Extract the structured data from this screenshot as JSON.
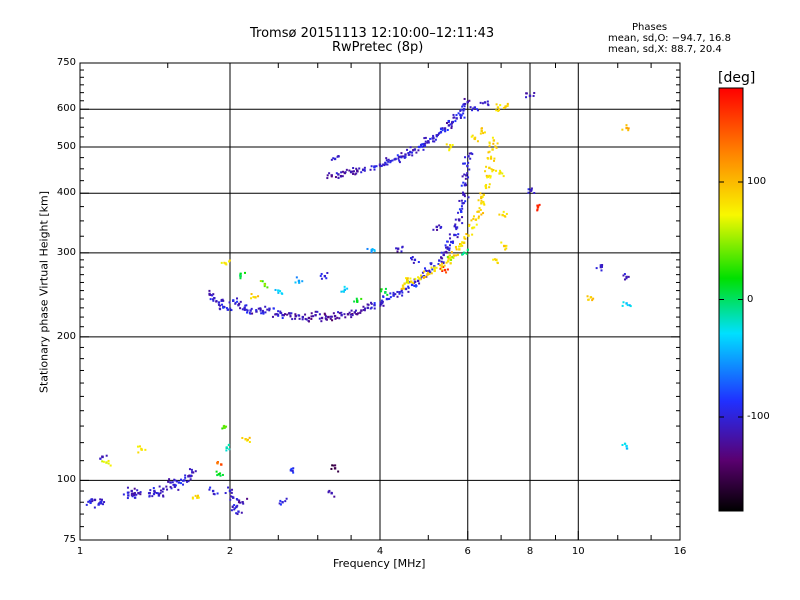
{
  "chart_data": {
    "type": "scatter",
    "title": "Tromsø 20151113 12:10:00–12:11:43",
    "subtitle": "RwPretec (8p)",
    "phases": {
      "heading": "Phases",
      "line_o": "mean, sd,O: −94.7, 16.8",
      "line_x": "mean, sd,X:  88.7, 20.4"
    },
    "xlabel": "Frequency [MHz]",
    "ylabel": "Stationary phase Virtual Height [km]",
    "xscale": "log",
    "yscale": "log",
    "xlim": [
      1,
      16
    ],
    "ylim": [
      75,
      750
    ],
    "xticks": [
      1,
      2,
      4,
      6,
      8,
      10,
      16
    ],
    "xtick_labels": [
      "1",
      "2",
      "4",
      "6",
      "8",
      "10",
      "16"
    ],
    "xgrid": [
      2,
      4,
      6,
      8,
      10
    ],
    "yticks": [
      75,
      100,
      200,
      300,
      400,
      500,
      600,
      750
    ],
    "ytick_labels": [
      "75",
      "100",
      "200",
      "300",
      "400",
      "500",
      "600",
      "750"
    ],
    "ygrid": [
      100,
      200,
      300,
      400,
      500,
      600
    ],
    "grid": true,
    "colorbar": {
      "label": "[deg]",
      "range": [
        -180,
        180
      ],
      "ticks": [
        100,
        0,
        -100
      ],
      "tick_labels": [
        "100",
        "0",
        "-100"
      ],
      "colormap": "rainbow (black-purple-blue-cyan-green-yellow-orange-red)"
    },
    "series": [
      {
        "color_by": "phase_deg",
        "points": [
          {
            "x": 1.05,
            "y": 90,
            "p": -100
          },
          {
            "x": 1.07,
            "y": 91,
            "p": -105
          },
          {
            "x": 1.09,
            "y": 89,
            "p": -95
          },
          {
            "x": 1.1,
            "y": 90,
            "p": -100
          },
          {
            "x": 1.11,
            "y": 112,
            "p": -110
          },
          {
            "x": 1.13,
            "y": 109,
            "p": 65
          },
          {
            "x": 1.25,
            "y": 93,
            "p": -100
          },
          {
            "x": 1.27,
            "y": 95,
            "p": -110
          },
          {
            "x": 1.29,
            "y": 92,
            "p": -100
          },
          {
            "x": 1.31,
            "y": 94,
            "p": -115
          },
          {
            "x": 1.33,
            "y": 116,
            "p": 80
          },
          {
            "x": 1.38,
            "y": 94,
            "p": -110
          },
          {
            "x": 1.41,
            "y": 95,
            "p": -105
          },
          {
            "x": 1.44,
            "y": 93,
            "p": -100
          },
          {
            "x": 1.47,
            "y": 96,
            "p": -110
          },
          {
            "x": 1.52,
            "y": 99,
            "p": -105
          },
          {
            "x": 1.55,
            "y": 97,
            "p": -110
          },
          {
            "x": 1.58,
            "y": 99,
            "p": -95
          },
          {
            "x": 1.62,
            "y": 100,
            "p": -100
          },
          {
            "x": 1.65,
            "y": 102,
            "p": -110
          },
          {
            "x": 1.68,
            "y": 104,
            "p": -105
          },
          {
            "x": 1.72,
            "y": 92,
            "p": 90
          },
          {
            "x": 1.85,
            "y": 95,
            "p": -100
          },
          {
            "x": 1.9,
            "y": 103,
            "p": 20
          },
          {
            "x": 1.92,
            "y": 108,
            "p": 140
          },
          {
            "x": 1.95,
            "y": 129,
            "p": 30
          },
          {
            "x": 1.97,
            "y": 117,
            "p": -10
          },
          {
            "x": 2.0,
            "y": 95,
            "p": -100
          },
          {
            "x": 2.03,
            "y": 92,
            "p": -110
          },
          {
            "x": 2.06,
            "y": 88,
            "p": -105
          },
          {
            "x": 2.08,
            "y": 86,
            "p": -100
          },
          {
            "x": 2.12,
            "y": 90,
            "p": -115
          },
          {
            "x": 2.15,
            "y": 122,
            "p": 90
          },
          {
            "x": 2.55,
            "y": 90,
            "p": -100
          },
          {
            "x": 2.65,
            "y": 105,
            "p": -90
          },
          {
            "x": 3.2,
            "y": 94,
            "p": -110
          },
          {
            "x": 3.25,
            "y": 106,
            "p": -150
          },
          {
            "x": 1.82,
            "y": 246,
            "p": -110
          },
          {
            "x": 1.86,
            "y": 241,
            "p": -105
          },
          {
            "x": 1.9,
            "y": 236,
            "p": -100
          },
          {
            "x": 1.94,
            "y": 231,
            "p": -110
          },
          {
            "x": 1.98,
            "y": 228,
            "p": -95
          },
          {
            "x": 1.96,
            "y": 285,
            "p": 80
          },
          {
            "x": 2.03,
            "y": 238,
            "p": -100
          },
          {
            "x": 2.08,
            "y": 233,
            "p": -110
          },
          {
            "x": 2.14,
            "y": 230,
            "p": -105
          },
          {
            "x": 2.2,
            "y": 227,
            "p": -100
          },
          {
            "x": 2.26,
            "y": 226,
            "p": -110
          },
          {
            "x": 2.33,
            "y": 225,
            "p": -95
          },
          {
            "x": 2.4,
            "y": 229,
            "p": -100
          },
          {
            "x": 2.48,
            "y": 223,
            "p": -110
          },
          {
            "x": 2.55,
            "y": 222,
            "p": -105
          },
          {
            "x": 2.63,
            "y": 224,
            "p": -115
          },
          {
            "x": 2.71,
            "y": 221,
            "p": -120
          },
          {
            "x": 2.8,
            "y": 220,
            "p": -110
          },
          {
            "x": 2.88,
            "y": 219,
            "p": -125
          },
          {
            "x": 2.97,
            "y": 222,
            "p": -115
          },
          {
            "x": 3.06,
            "y": 219,
            "p": -120
          },
          {
            "x": 3.15,
            "y": 220,
            "p": -130
          },
          {
            "x": 3.25,
            "y": 221,
            "p": -120
          },
          {
            "x": 3.35,
            "y": 222,
            "p": -110
          },
          {
            "x": 3.45,
            "y": 223,
            "p": -125
          },
          {
            "x": 3.56,
            "y": 225,
            "p": -115
          },
          {
            "x": 3.67,
            "y": 227,
            "p": -120
          },
          {
            "x": 3.78,
            "y": 230,
            "p": -110
          },
          {
            "x": 3.9,
            "y": 233,
            "p": -100
          },
          {
            "x": 4.01,
            "y": 236,
            "p": -110
          },
          {
            "x": 4.13,
            "y": 240,
            "p": -95
          },
          {
            "x": 4.26,
            "y": 244,
            "p": -100
          },
          {
            "x": 4.38,
            "y": 248,
            "p": -105
          },
          {
            "x": 4.51,
            "y": 252,
            "p": -100
          },
          {
            "x": 4.64,
            "y": 257,
            "p": -90
          },
          {
            "x": 4.77,
            "y": 262,
            "p": -110
          },
          {
            "x": 4.9,
            "y": 268,
            "p": -100
          },
          {
            "x": 5.02,
            "y": 274,
            "p": -105
          },
          {
            "x": 5.14,
            "y": 281,
            "p": -95
          },
          {
            "x": 5.26,
            "y": 289,
            "p": -100
          },
          {
            "x": 5.37,
            "y": 297,
            "p": -110
          },
          {
            "x": 5.47,
            "y": 306,
            "p": -100
          },
          {
            "x": 5.56,
            "y": 316,
            "p": -95
          },
          {
            "x": 5.64,
            "y": 327,
            "p": -105
          },
          {
            "x": 5.71,
            "y": 339,
            "p": -100
          },
          {
            "x": 5.77,
            "y": 352,
            "p": -110
          },
          {
            "x": 5.82,
            "y": 366,
            "p": -95
          },
          {
            "x": 5.86,
            "y": 381,
            "p": -100
          },
          {
            "x": 5.9,
            "y": 398,
            "p": -105
          },
          {
            "x": 5.93,
            "y": 416,
            "p": -100
          },
          {
            "x": 5.96,
            "y": 436,
            "p": -110
          },
          {
            "x": 5.99,
            "y": 456,
            "p": -100
          },
          {
            "x": 6.02,
            "y": 478,
            "p": -105
          },
          {
            "x": 2.1,
            "y": 268,
            "p": 10
          },
          {
            "x": 2.25,
            "y": 242,
            "p": 90
          },
          {
            "x": 2.35,
            "y": 258,
            "p": 40
          },
          {
            "x": 2.5,
            "y": 250,
            "p": -30
          },
          {
            "x": 2.75,
            "y": 262,
            "p": -50
          },
          {
            "x": 3.1,
            "y": 268,
            "p": -100
          },
          {
            "x": 3.4,
            "y": 251,
            "p": -40
          },
          {
            "x": 3.6,
            "y": 238,
            "p": 20
          },
          {
            "x": 3.85,
            "y": 304,
            "p": -50
          },
          {
            "x": 4.1,
            "y": 248,
            "p": 10
          },
          {
            "x": 4.35,
            "y": 306,
            "p": -110
          },
          {
            "x": 4.55,
            "y": 262,
            "p": 60
          },
          {
            "x": 4.7,
            "y": 290,
            "p": -100
          },
          {
            "x": 5.2,
            "y": 340,
            "p": -110
          },
          {
            "x": 5.4,
            "y": 276,
            "p": 160
          },
          {
            "x": 5.55,
            "y": 290,
            "p": 50
          },
          {
            "x": 5.9,
            "y": 300,
            "p": -5
          },
          {
            "x": 4.45,
            "y": 256,
            "p": 85
          },
          {
            "x": 4.62,
            "y": 261,
            "p": 90
          },
          {
            "x": 4.8,
            "y": 265,
            "p": 80
          },
          {
            "x": 4.98,
            "y": 270,
            "p": 95
          },
          {
            "x": 5.15,
            "y": 275,
            "p": 85
          },
          {
            "x": 5.32,
            "y": 281,
            "p": 90
          },
          {
            "x": 5.48,
            "y": 288,
            "p": 80
          },
          {
            "x": 5.63,
            "y": 296,
            "p": 95
          },
          {
            "x": 5.77,
            "y": 305,
            "p": 85
          },
          {
            "x": 5.9,
            "y": 315,
            "p": 90
          },
          {
            "x": 6.02,
            "y": 326,
            "p": 85
          },
          {
            "x": 6.13,
            "y": 338,
            "p": 80
          },
          {
            "x": 6.23,
            "y": 352,
            "p": 90
          },
          {
            "x": 6.31,
            "y": 366,
            "p": 95
          },
          {
            "x": 6.39,
            "y": 381,
            "p": 85
          },
          {
            "x": 6.46,
            "y": 397,
            "p": 90
          },
          {
            "x": 6.52,
            "y": 414,
            "p": 80
          },
          {
            "x": 6.58,
            "y": 433,
            "p": 85
          },
          {
            "x": 6.63,
            "y": 452,
            "p": 90
          },
          {
            "x": 6.68,
            "y": 473,
            "p": 95
          },
          {
            "x": 6.73,
            "y": 494,
            "p": 85
          },
          {
            "x": 6.77,
            "y": 516,
            "p": 90
          },
          {
            "x": 6.95,
            "y": 440,
            "p": 80
          },
          {
            "x": 7.05,
            "y": 360,
            "p": 85
          },
          {
            "x": 7.1,
            "y": 310,
            "p": 90
          },
          {
            "x": 6.85,
            "y": 290,
            "p": 80
          },
          {
            "x": 3.2,
            "y": 436,
            "p": -120
          },
          {
            "x": 3.3,
            "y": 438,
            "p": -110
          },
          {
            "x": 3.4,
            "y": 441,
            "p": -125
          },
          {
            "x": 3.5,
            "y": 443,
            "p": -115
          },
          {
            "x": 3.6,
            "y": 446,
            "p": -120
          },
          {
            "x": 3.7,
            "y": 448,
            "p": -110
          },
          {
            "x": 3.25,
            "y": 472,
            "p": -100
          },
          {
            "x": 3.9,
            "y": 455,
            "p": -105
          },
          {
            "x": 4.0,
            "y": 459,
            "p": -110
          },
          {
            "x": 4.1,
            "y": 463,
            "p": -100
          },
          {
            "x": 4.2,
            "y": 467,
            "p": -105
          },
          {
            "x": 4.3,
            "y": 472,
            "p": -95
          },
          {
            "x": 4.4,
            "y": 477,
            "p": -100
          },
          {
            "x": 4.5,
            "y": 482,
            "p": -110
          },
          {
            "x": 4.6,
            "y": 488,
            "p": -100
          },
          {
            "x": 4.7,
            "y": 494,
            "p": -105
          },
          {
            "x": 4.8,
            "y": 500,
            "p": -95
          },
          {
            "x": 4.9,
            "y": 507,
            "p": -100
          },
          {
            "x": 5.0,
            "y": 514,
            "p": -110
          },
          {
            "x": 5.1,
            "y": 521,
            "p": -100
          },
          {
            "x": 5.2,
            "y": 529,
            "p": -105
          },
          {
            "x": 5.3,
            "y": 537,
            "p": -95
          },
          {
            "x": 5.4,
            "y": 546,
            "p": -100
          },
          {
            "x": 5.5,
            "y": 555,
            "p": -110
          },
          {
            "x": 5.6,
            "y": 564,
            "p": -100
          },
          {
            "x": 5.7,
            "y": 574,
            "p": -105
          },
          {
            "x": 5.8,
            "y": 584,
            "p": -95
          },
          {
            "x": 5.9,
            "y": 600,
            "p": -100
          },
          {
            "x": 6.0,
            "y": 621,
            "p": -110
          },
          {
            "x": 6.2,
            "y": 605,
            "p": -100
          },
          {
            "x": 6.5,
            "y": 620,
            "p": -105
          },
          {
            "x": 6.9,
            "y": 605,
            "p": 85
          },
          {
            "x": 7.15,
            "y": 608,
            "p": 90
          },
          {
            "x": 8.0,
            "y": 640,
            "p": -110
          },
          {
            "x": 5.55,
            "y": 500,
            "p": 80
          },
          {
            "x": 6.2,
            "y": 520,
            "p": 85
          },
          {
            "x": 6.4,
            "y": 540,
            "p": 90
          },
          {
            "x": 8.05,
            "y": 406,
            "p": -100
          },
          {
            "x": 8.3,
            "y": 374,
            "p": 160
          },
          {
            "x": 11.1,
            "y": 280,
            "p": -110
          },
          {
            "x": 12.5,
            "y": 267,
            "p": -110
          },
          {
            "x": 10.6,
            "y": 242,
            "p": 90
          },
          {
            "x": 12.5,
            "y": 235,
            "p": -40
          },
          {
            "x": 12.5,
            "y": 548,
            "p": 100
          },
          {
            "x": 12.5,
            "y": 118,
            "p": -30
          }
        ]
      }
    ]
  }
}
